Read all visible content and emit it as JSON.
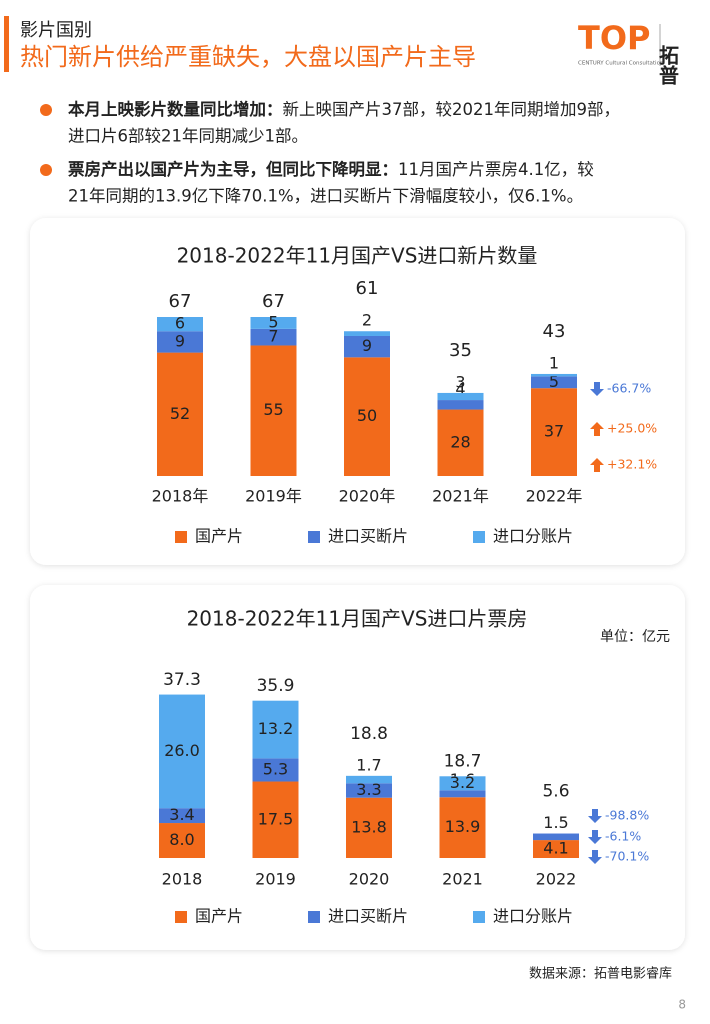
{
  "header": {
    "section": "影片国别",
    "title": "热门新片供给严重缺失，大盘以国产片主导",
    "logo_text": "TOP",
    "logo_sub": "CENTURY Cultural Consultation",
    "logo_cn": "拓普"
  },
  "bullets": [
    {
      "lead": "本月上映影片数量同比增加：",
      "lines": [
        "新上映国产片37部，较2021年同期增加9部，",
        "进口片6部较21年同期减少1部。"
      ]
    },
    {
      "lead": "票房产出以国产片为主导，但同比下降明显：",
      "lines": [
        "11月国产片票房4.1亿，较",
        "21年同期的13.9亿下降70.1%，进口买断片下滑幅度较小，仅6.1%。"
      ]
    }
  ],
  "chart_data": [
    {
      "type": "bar",
      "stacked": true,
      "title": "2018-2022年11月国产VS进口新片数量",
      "categories": [
        "2018年",
        "2019年",
        "2020年",
        "2021年",
        "2022年"
      ],
      "series": [
        {
          "name": "国产片",
          "color": "#f26a1b",
          "values": [
            52,
            55,
            50,
            28,
            37
          ]
        },
        {
          "name": "进口买断片",
          "color": "#4a78d6",
          "values": [
            9,
            7,
            9,
            4,
            5
          ]
        },
        {
          "name": "进口分账片",
          "color": "#55aaee",
          "values": [
            6,
            5,
            2,
            3,
            1
          ]
        }
      ],
      "totals": [
        67,
        67,
        61,
        35,
        43
      ],
      "annotations": [
        {
          "label": "-66.7%",
          "direction": "down",
          "color": "#4a78d6"
        },
        {
          "label": "+25.0%",
          "direction": "up",
          "color": "#f26a1b"
        },
        {
          "label": "+32.1%",
          "direction": "up",
          "color": "#f26a1b"
        }
      ]
    },
    {
      "type": "bar",
      "stacked": true,
      "title": "2018-2022年11月国产VS进口片票房",
      "unit": "单位：亿元",
      "categories": [
        "2018",
        "2019",
        "2020",
        "2021",
        "2022"
      ],
      "series": [
        {
          "name": "国产片",
          "color": "#f26a1b",
          "values": [
            8.0,
            17.5,
            13.8,
            13.9,
            4.1
          ],
          "value_labels": [
            "8.0",
            "17.5",
            "13.8",
            "13.9",
            "4.1"
          ]
        },
        {
          "name": "进口买断片",
          "color": "#4a78d6",
          "values": [
            3.4,
            5.3,
            3.3,
            1.6,
            1.5
          ],
          "value_labels": [
            "3.4",
            "5.3",
            "3.3",
            "1.6",
            "1.5"
          ]
        },
        {
          "name": "进口分账片",
          "color": "#55aaee",
          "values": [
            26.0,
            13.2,
            1.7,
            3.2,
            0
          ],
          "value_labels": [
            "26.0",
            "13.2",
            "1.7",
            "3.2",
            null
          ]
        }
      ],
      "totals": [
        37.3,
        35.9,
        18.8,
        18.7,
        5.6
      ],
      "annotations": [
        {
          "label": "-98.8%",
          "direction": "down",
          "color": "#4a78d6"
        },
        {
          "label": "-6.1%",
          "direction": "down",
          "color": "#4a78d6"
        },
        {
          "label": "-70.1%",
          "direction": "down",
          "color": "#4a78d6"
        }
      ]
    }
  ],
  "source": "数据来源：拓普电影睿库",
  "page": "8"
}
